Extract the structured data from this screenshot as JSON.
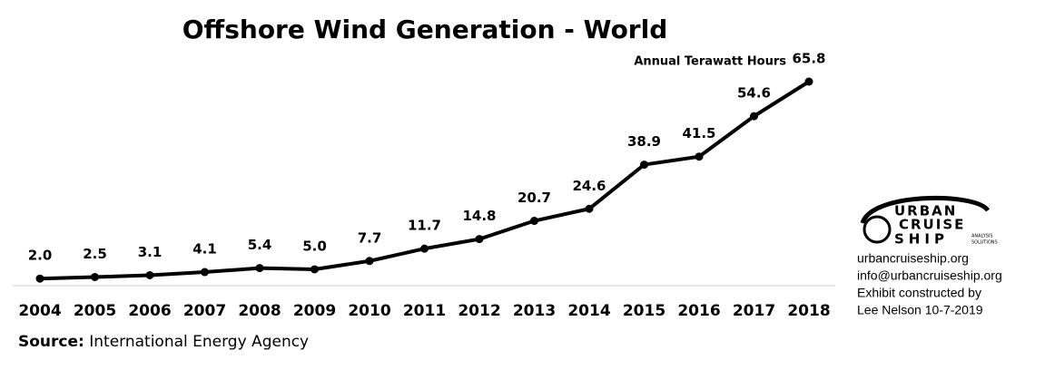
{
  "chart_data": {
    "type": "line",
    "title": "Offshore Wind Generation - World",
    "annotation": "Annual Terawatt Hours",
    "categories": [
      "2004",
      "2005",
      "2006",
      "2007",
      "2008",
      "2009",
      "2010",
      "2011",
      "2012",
      "2013",
      "2014",
      "2015",
      "2016",
      "2017",
      "2018"
    ],
    "values": [
      2,
      2.5,
      3.1,
      4.1,
      5.4,
      5,
      7.7,
      11.7,
      14.8,
      20.7,
      24.6,
      38.9,
      41.5,
      54.6,
      65.8
    ],
    "value_labels": [
      "2.0",
      "2.5",
      "3.1",
      "4.1",
      "5.4",
      "5.0",
      "7.7",
      "11.7",
      "14.8",
      "20.7",
      "24.6",
      "38.9",
      "41.5",
      "54.6",
      "65.8"
    ],
    "color": "#000000",
    "source_label": "Source:",
    "source": "International Energy Agency"
  },
  "logo": {
    "lines": [
      "URBAN",
      "CRUISE",
      "SHIP"
    ],
    "tagline": [
      "ANALYSIS",
      "SOLUTIONS"
    ]
  },
  "credits": [
    "urbancruiseship.org",
    "info@urbancruiseship.org",
    "Exhibit constructed by",
    "Lee Nelson 10-7-2019"
  ]
}
